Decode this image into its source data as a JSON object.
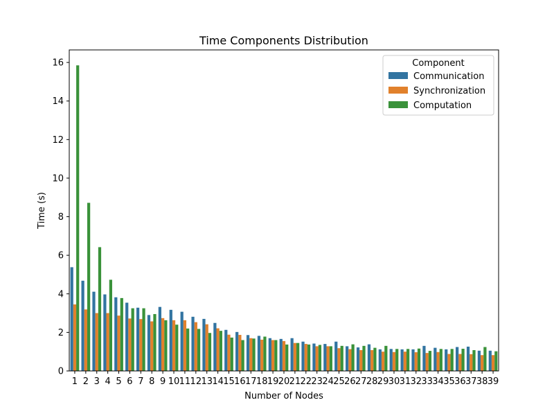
{
  "chart_data": {
    "type": "bar",
    "title": "Time Components Distribution",
    "xlabel": "Number of Nodes",
    "ylabel": "Time (s)",
    "ylim": [
      0,
      16.65
    ],
    "yticks": [
      0,
      2,
      4,
      6,
      8,
      10,
      12,
      14,
      16
    ],
    "grid": false,
    "legend": {
      "title": "Component",
      "position": "top-right"
    },
    "categories": [
      "1",
      "2",
      "3",
      "4",
      "5",
      "6",
      "7",
      "8",
      "9",
      "10",
      "11",
      "12",
      "13",
      "14",
      "15",
      "16",
      "17",
      "18",
      "19",
      "20",
      "21",
      "22",
      "23",
      "24",
      "25",
      "26",
      "27",
      "28",
      "29",
      "30",
      "31",
      "32",
      "33",
      "34",
      "35",
      "36",
      "37",
      "38",
      "39"
    ],
    "series": [
      {
        "name": "Communication",
        "color": "#3274a1",
        "values": [
          5.38,
          4.68,
          4.11,
          3.97,
          3.82,
          3.54,
          3.28,
          2.9,
          3.32,
          3.17,
          3.07,
          2.81,
          2.7,
          2.49,
          2.13,
          2.02,
          1.86,
          1.82,
          1.7,
          1.66,
          1.7,
          1.52,
          1.42,
          1.4,
          1.52,
          1.28,
          1.22,
          1.38,
          1.12,
          1.14,
          1.12,
          1.12,
          1.3,
          1.2,
          1.12,
          1.24,
          1.26,
          1.05,
          1.05
        ]
      },
      {
        "name": "Synchronization",
        "color": "#e1812c",
        "values": [
          3.45,
          3.19,
          3.0,
          3.0,
          2.87,
          2.72,
          2.69,
          2.57,
          2.74,
          2.63,
          2.63,
          2.53,
          2.42,
          2.21,
          1.88,
          1.87,
          1.7,
          1.62,
          1.6,
          1.55,
          1.45,
          1.4,
          1.28,
          1.28,
          1.18,
          1.13,
          1.08,
          1.08,
          1.0,
          0.98,
          1.0,
          0.97,
          0.93,
          0.98,
          0.88,
          0.88,
          0.87,
          0.82,
          0.82
        ]
      },
      {
        "name": "Computation",
        "color": "#3a923a",
        "values": [
          15.85,
          8.72,
          6.42,
          4.73,
          3.78,
          3.25,
          3.25,
          2.95,
          2.63,
          2.4,
          2.2,
          2.18,
          1.97,
          2.08,
          1.73,
          1.6,
          1.68,
          1.78,
          1.6,
          1.37,
          1.45,
          1.37,
          1.35,
          1.28,
          1.3,
          1.38,
          1.3,
          1.2,
          1.3,
          1.14,
          1.14,
          1.16,
          1.04,
          1.14,
          1.14,
          1.15,
          1.08,
          1.24,
          1.02
        ]
      }
    ]
  }
}
